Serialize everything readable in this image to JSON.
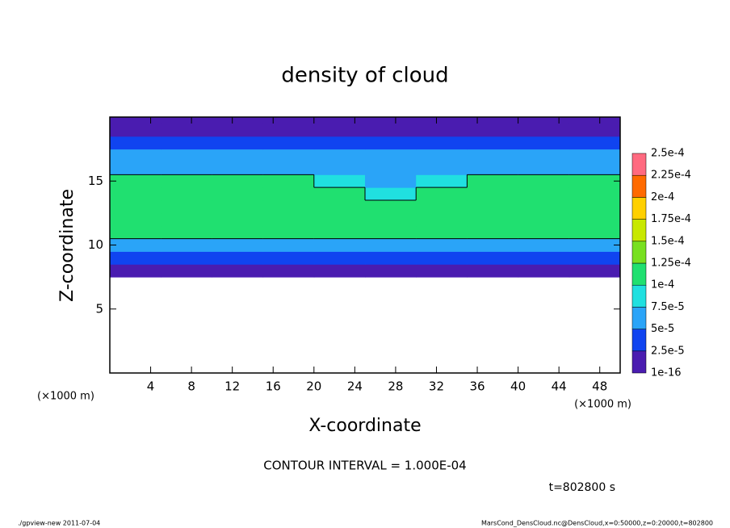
{
  "chart_data": {
    "type": "heatmap",
    "title": "density of cloud",
    "xlabel": "X-coordinate",
    "ylabel": "Z-coordinate",
    "xunit": "(×1000 m)",
    "yunit": "(×1000 m)",
    "contour_note": "CONTOUR INTERVAL = 1.000E-04",
    "contour_level": 0.0001,
    "time_note": "t=802800 s",
    "footer_left": "./gpview-new  2011-07-04",
    "footer_right": "MarsCond_DensCloud.nc@DensCloud,x=0:50000,z=0:20000,t=802800",
    "xlim": [
      0,
      50
    ],
    "ylim": [
      0,
      20
    ],
    "xticks": [
      4,
      8,
      12,
      16,
      20,
      24,
      28,
      32,
      36,
      40,
      44,
      48
    ],
    "yticks": [
      5,
      10,
      15
    ],
    "xbins": [
      0,
      5,
      10,
      15,
      20,
      25,
      30,
      35,
      40,
      45,
      50
    ],
    "zbins": [
      7.5,
      8.5,
      9.5,
      10.5,
      11.5,
      12.5,
      13.5,
      14.5,
      15.5,
      16.5,
      17.5,
      18.5,
      19.5,
      20
    ],
    "values": [
      [
        2e-05,
        2e-05,
        2e-05,
        2e-05,
        2e-05,
        2e-05,
        2e-05,
        2e-05,
        2e-05,
        2e-05
      ],
      [
        4e-05,
        4e-05,
        4e-05,
        4e-05,
        4e-05,
        4e-05,
        4e-05,
        4e-05,
        4e-05,
        4e-05
      ],
      [
        7e-05,
        7e-05,
        7e-05,
        7e-05,
        7e-05,
        6e-05,
        7e-05,
        7e-05,
        7e-05,
        7e-05
      ],
      [
        0.0001,
        0.0001,
        0.0001,
        0.0001,
        0.0001,
        0.0001,
        0.0001,
        0.0001,
        0.0001,
        0.0001
      ],
      [
        0.000115,
        0.000115,
        0.000115,
        0.000115,
        0.000115,
        0.000115,
        0.000115,
        0.000115,
        0.000115,
        0.000115
      ],
      [
        0.00012,
        0.00012,
        0.00012,
        0.00012,
        0.00012,
        0.00012,
        0.00012,
        0.00012,
        0.00012,
        0.00012
      ],
      [
        0.00011,
        0.00011,
        0.00011,
        0.00011,
        0.00011,
        9e-05,
        0.00011,
        0.00011,
        0.00011,
        0.00011
      ],
      [
        0.0001,
        0.0001,
        0.0001,
        0.0001,
        9e-05,
        7e-05,
        8e-05,
        0.0001,
        0.0001,
        0.0001
      ],
      [
        7e-05,
        7e-05,
        7e-05,
        7e-05,
        7e-05,
        6e-05,
        7e-05,
        7e-05,
        7e-05,
        7e-05
      ],
      [
        5e-05,
        5e-05,
        5e-05,
        5e-05,
        5e-05,
        5e-05,
        6e-05,
        6e-05,
        5e-05,
        5e-05
      ],
      [
        3.5e-05,
        3.5e-05,
        3.5e-05,
        3.5e-05,
        3.5e-05,
        3.5e-05,
        4.5e-05,
        4.5e-05,
        3.5e-05,
        3.5e-05
      ],
      [
        2e-05,
        2e-05,
        2e-05,
        2e-05,
        2e-05,
        2e-05,
        2e-05,
        2e-05,
        2e-05,
        2e-05
      ],
      [
        1.5e-05,
        1e-05,
        1e-05,
        1.5e-05,
        1.5e-05,
        1.5e-05,
        1.5e-05,
        1.5e-05,
        1.5e-05,
        1.5e-05
      ]
    ],
    "levels": [
      1e-16,
      {
        "value": 2.5e-05,
        "label": "2.5e-5"
      },
      {
        "value": 5e-05,
        "label": "5e-5"
      },
      {
        "value": 7.5e-05,
        "label": "7.5e-5"
      },
      {
        "value": 0.0001,
        "label": "1e-4"
      },
      {
        "value": 0.000125,
        "label": "1.25e-4"
      },
      {
        "value": 0.00015,
        "label": "1.5e-4"
      },
      {
        "value": 0.000175,
        "label": "1.75e-4"
      },
      {
        "value": 0.0002,
        "label": "2e-4"
      },
      {
        "value": 0.000225,
        "label": "2.25e-4"
      },
      {
        "value": 0.00025,
        "label": "2.5e-4"
      }
    ],
    "colors": [
      "#4a1cb0",
      "#1044f0",
      "#2aa4f8",
      "#20e0e0",
      "#20e070",
      "#78e020",
      "#c8e800",
      "#ffd000",
      "#ff6a00",
      "#ff6a80"
    ]
  }
}
